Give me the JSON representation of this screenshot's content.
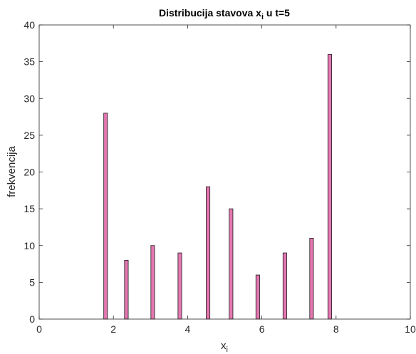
{
  "chart_data": {
    "type": "bar",
    "title_main": "Distribucija stavova x",
    "title_sub": "i",
    "title_rest": " u t=5",
    "xlabel_main": "x",
    "xlabel_sub": "i",
    "ylabel": "frekvencija",
    "xlim": [
      0,
      10
    ],
    "ylim": [
      0,
      40
    ],
    "xticks": [
      0,
      2,
      4,
      6,
      8,
      10
    ],
    "yticks": [
      0,
      5,
      10,
      15,
      20,
      25,
      30,
      35,
      40
    ],
    "bar_width": 0.1,
    "bar_color": "#e377b0",
    "bar_edge_color": "#1a1a1a",
    "x": [
      1.79,
      2.35,
      3.06,
      3.79,
      4.55,
      5.17,
      5.89,
      6.62,
      7.34,
      7.83
    ],
    "values": [
      28,
      8,
      10,
      9,
      18,
      15,
      6,
      9,
      11,
      36
    ],
    "grid": false,
    "box": true
  }
}
